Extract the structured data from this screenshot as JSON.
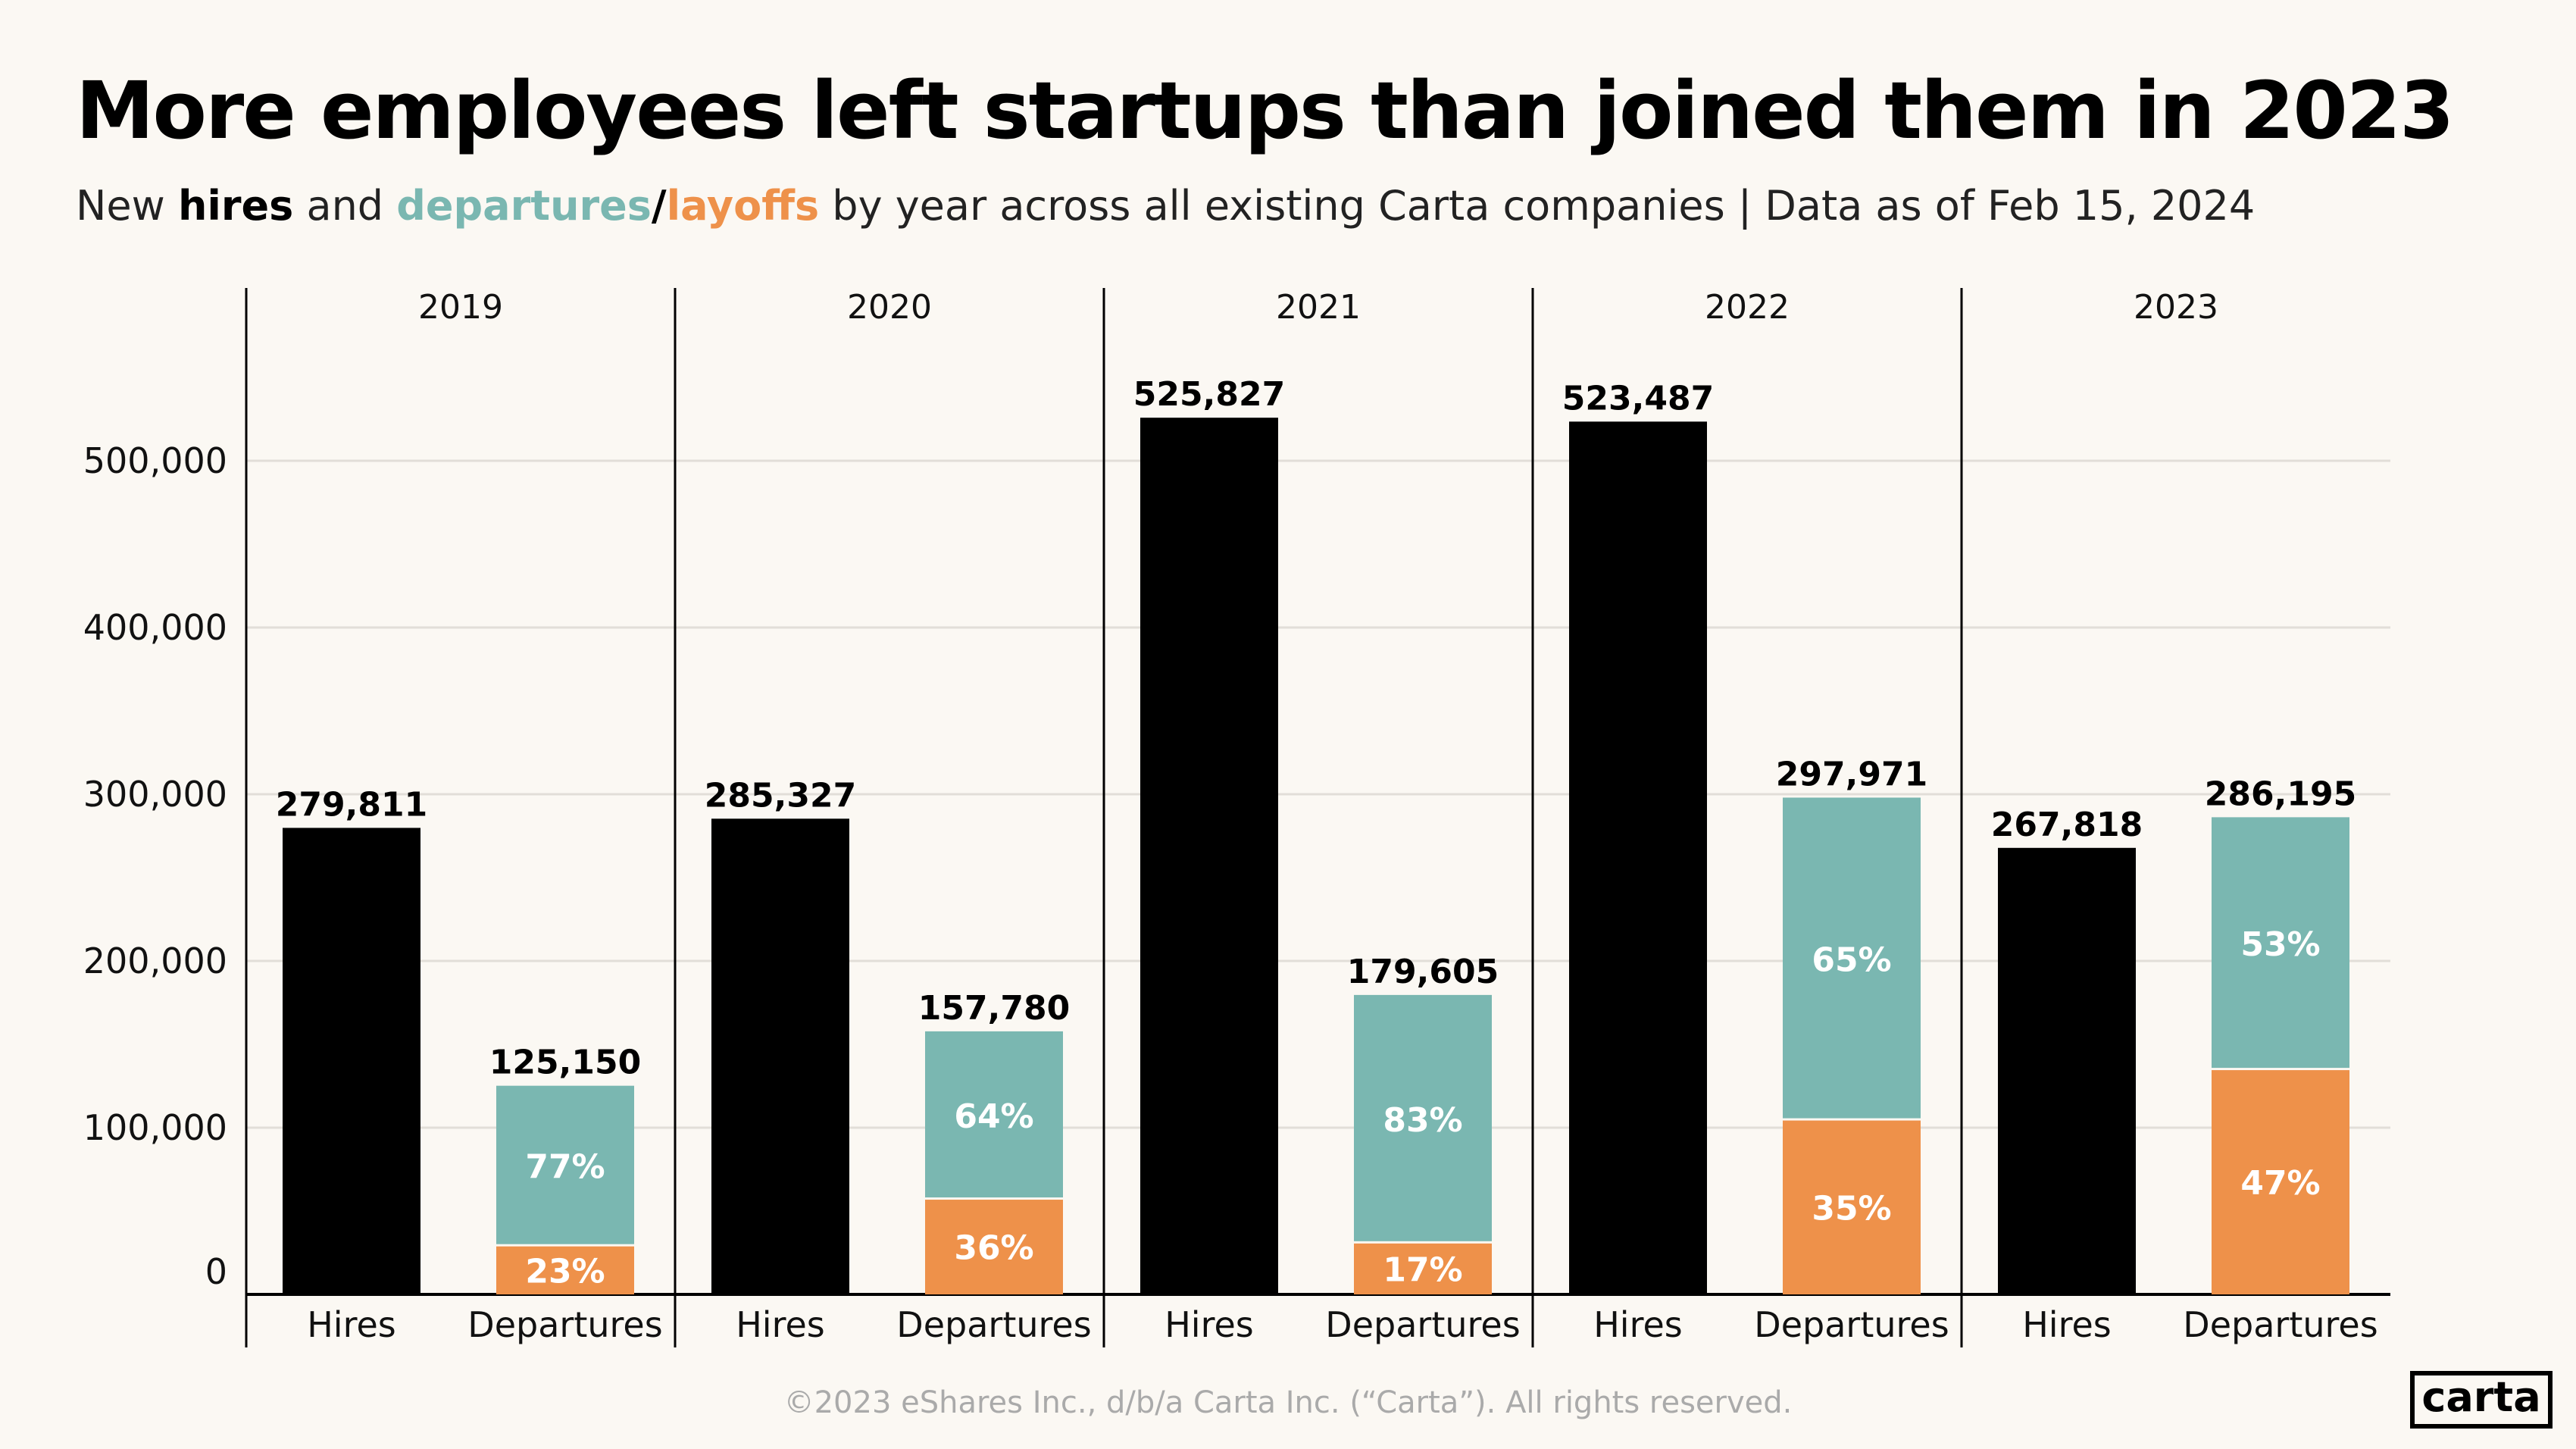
{
  "title": "More employees left startups than joined them in 2023",
  "subtitle": {
    "part1": "New ",
    "hires": "hires",
    "part2": " and ",
    "departures": "departures",
    "slash": "/",
    "layoffs": "layoffs",
    "part3": " by year across all existing Carta companies  |  Data as of Feb 15, 2024"
  },
  "footer": "©2023 eShares Inc., d/b/a Carta Inc. (“Carta”). All rights reserved.",
  "logo": "carta",
  "colors": {
    "hires": "#000000",
    "departures": "#7AB7B1",
    "layoffs": "#EE914A",
    "background": "#FBF8F3"
  },
  "chart_data": {
    "type": "bar",
    "stacked_departures": true,
    "ylim": [
      0,
      550000
    ],
    "yticks": [
      "0",
      "100,000",
      "200,000",
      "300,000",
      "400,000",
      "500,000"
    ],
    "ytick_values": [
      0,
      100000,
      200000,
      300000,
      400000,
      500000
    ],
    "grid": true,
    "panels": [
      "2019",
      "2020",
      "2021",
      "2022",
      "2023"
    ],
    "categories": [
      "Hires",
      "Departures"
    ],
    "hires": [
      279811,
      285327,
      525827,
      523487,
      267818
    ],
    "hires_labels": [
      "279,811",
      "285,327",
      "525,827",
      "523,487",
      "267,818"
    ],
    "departures": [
      125150,
      157780,
      179605,
      297971,
      286195
    ],
    "departures_labels": [
      "125,150",
      "157,780",
      "179,605",
      "297,971",
      "286,195"
    ],
    "departures_pct": [
      "77%",
      "64%",
      "83%",
      "65%",
      "53%"
    ],
    "layoffs_pct": [
      "23%",
      "36%",
      "17%",
      "35%",
      "47%"
    ],
    "layoffs_share": [
      23,
      36,
      17,
      35,
      47
    ]
  }
}
